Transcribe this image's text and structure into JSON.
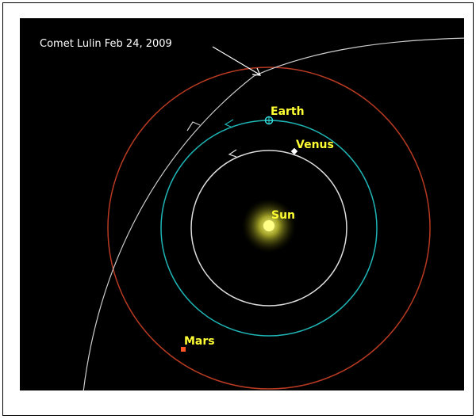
{
  "annotation": {
    "text": "Comet Lulin Feb 24, 2009"
  },
  "bodies": [
    {
      "label": "Sun"
    },
    {
      "label": "Venus"
    },
    {
      "label": "Earth"
    },
    {
      "label": "Mars"
    }
  ]
}
